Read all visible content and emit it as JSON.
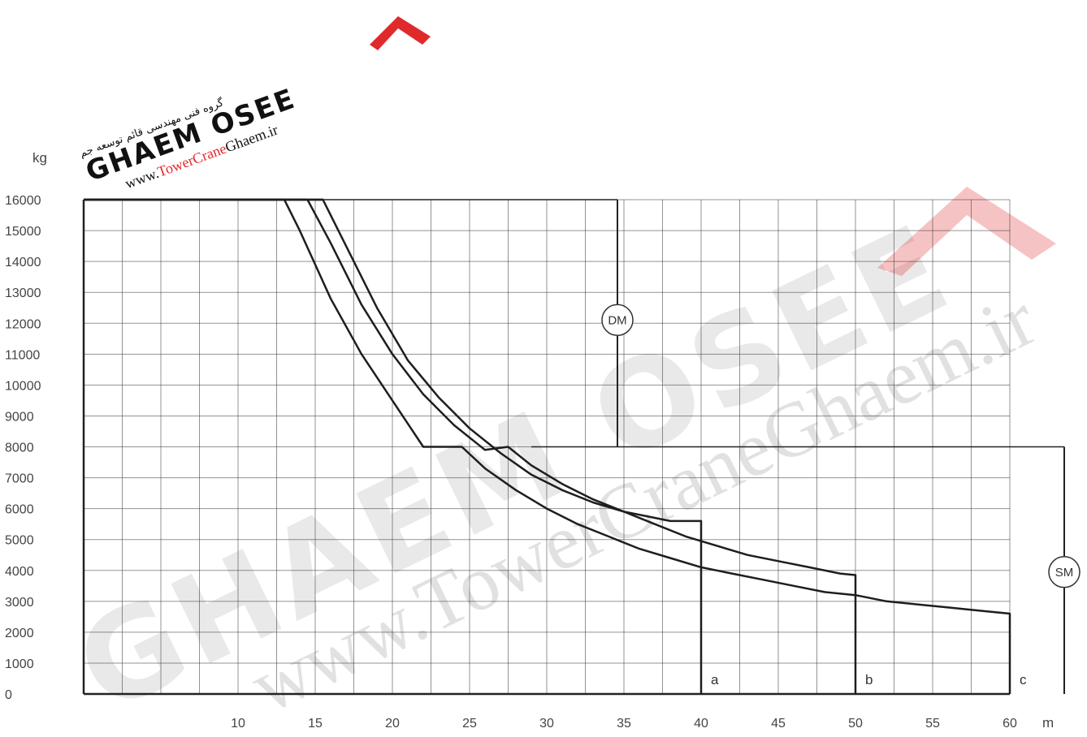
{
  "chart_data": {
    "type": "line",
    "title": "",
    "xlabel": "m",
    "ylabel": "kg",
    "xlim": [
      0,
      60
    ],
    "ylim": [
      0,
      16000
    ],
    "x_ticks": [
      10,
      15,
      20,
      25,
      30,
      35,
      40,
      45,
      50,
      55,
      60
    ],
    "y_ticks": [
      0,
      1000,
      2000,
      3000,
      4000,
      5000,
      6000,
      7000,
      8000,
      9000,
      10000,
      11000,
      12000,
      13000,
      14000,
      15000,
      16000
    ],
    "grid": true,
    "series": [
      {
        "name": "a",
        "style": "DM",
        "points": [
          [
            0,
            16000
          ],
          [
            15.5,
            16000
          ],
          [
            17,
            14500
          ],
          [
            19,
            12500
          ],
          [
            21,
            10800
          ],
          [
            23,
            9600
          ],
          [
            25,
            8600
          ],
          [
            27,
            7800
          ],
          [
            29,
            7100
          ],
          [
            31,
            6600
          ],
          [
            33,
            6200
          ],
          [
            35,
            5900
          ],
          [
            37,
            5700
          ],
          [
            38,
            5600
          ],
          [
            40,
            5600
          ],
          [
            40,
            0
          ]
        ]
      },
      {
        "name": "b",
        "style": "DM",
        "points": [
          [
            0,
            16000
          ],
          [
            14.5,
            16000
          ],
          [
            16,
            14600
          ],
          [
            18,
            12600
          ],
          [
            20,
            11000
          ],
          [
            22,
            9700
          ],
          [
            24,
            8700
          ],
          [
            26,
            7900
          ],
          [
            27.5,
            8000
          ],
          [
            29,
            7400
          ],
          [
            31,
            6800
          ],
          [
            33,
            6300
          ],
          [
            35,
            5900
          ],
          [
            37,
            5500
          ],
          [
            39,
            5100
          ],
          [
            41,
            4800
          ],
          [
            43,
            4500
          ],
          [
            45,
            4300
          ],
          [
            47,
            4100
          ],
          [
            49,
            3900
          ],
          [
            50,
            3850
          ],
          [
            50,
            0
          ]
        ]
      },
      {
        "name": "c",
        "style": "DM",
        "points": [
          [
            0,
            16000
          ],
          [
            13,
            16000
          ],
          [
            14,
            15000
          ],
          [
            16,
            12800
          ],
          [
            18,
            11000
          ],
          [
            20,
            9500
          ],
          [
            22,
            8000
          ],
          [
            24.5,
            8000
          ],
          [
            26,
            7300
          ],
          [
            28,
            6600
          ],
          [
            30,
            6000
          ],
          [
            32,
            5500
          ],
          [
            34,
            5100
          ],
          [
            36,
            4700
          ],
          [
            38,
            4400
          ],
          [
            40,
            4100
          ],
          [
            42,
            3900
          ],
          [
            44,
            3700
          ],
          [
            46,
            3500
          ],
          [
            48,
            3300
          ],
          [
            50,
            3200
          ],
          [
            52,
            3000
          ],
          [
            54,
            2900
          ],
          [
            56,
            2800
          ],
          [
            58,
            2700
          ],
          [
            60,
            2600
          ],
          [
            60,
            0
          ]
        ]
      }
    ],
    "annotations": [
      {
        "label": "DM",
        "range_y": [
          8000,
          16000
        ]
      },
      {
        "label": "SM",
        "range_y": [
          0,
          8000
        ]
      }
    ],
    "end_labels": [
      {
        "label": "a",
        "x": 40
      },
      {
        "label": "b",
        "x": 50
      },
      {
        "label": "c",
        "x": 60
      }
    ]
  },
  "watermark": {
    "brand": "GHAEM",
    "brand_suffix": "OSEE",
    "url_prefix": "www.",
    "url_tower": "Tower",
    "url_crane": "Crane",
    "url_ghaem": "Ghaem",
    "url_suffix": ".ir",
    "persian_text": "گروه فنی مهندسی قائم توسعه جم",
    "accent_color": "#e0292b",
    "ink_color": "#111111"
  }
}
